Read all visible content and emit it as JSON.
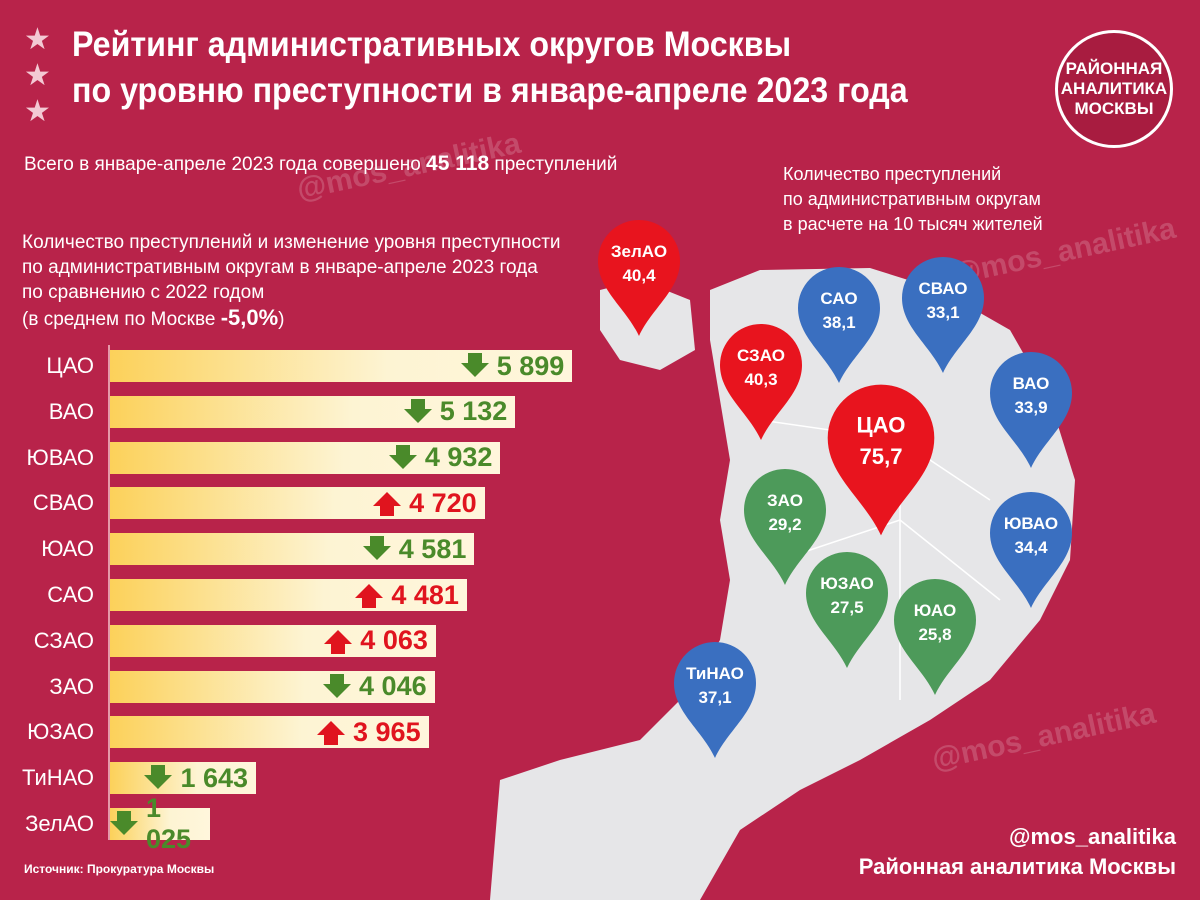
{
  "header": {
    "title_line1": "Рейтинг административных округов Москвы",
    "title_line2": "по уровню преступности в январе-апреле 2023 года"
  },
  "logo": {
    "text": "РАЙОННАЯ АНАЛИТИКА МОСКВЫ"
  },
  "total": {
    "prefix": "Всего в январе-апреле 2023 года совершено",
    "value": "45 118",
    "suffix": "преступлений"
  },
  "colors": {
    "background": "#b8234a",
    "down": "#4a8a2a",
    "up": "#e0141e",
    "pin_red": "#e8141e",
    "pin_blue": "#3a6fc0",
    "pin_green": "#4d9a5a",
    "map": "#e6e6e8"
  },
  "chart_data": [
    {
      "type": "bar",
      "title": "Количество преступлений и изменение уровня преступности по административным округам в январе-апреле 2023 года по сравнению с 2022 годом",
      "note_prefix": "(в среднем по Москве",
      "note_value": "-5,0%",
      "note_suffix": ")",
      "categories": [
        "ЦАО",
        "ВАО",
        "ЮВАО",
        "СВАО",
        "ЮАО",
        "САО",
        "СЗАО",
        "ЗАО",
        "ЮЗАО",
        "ТиНАО",
        "ЗелАО"
      ],
      "values": [
        5899,
        5132,
        4932,
        4720,
        4581,
        4481,
        4063,
        4046,
        3965,
        1643,
        1025
      ],
      "labels": [
        "5 899",
        "5 132",
        "4 932",
        "4 720",
        "4 581",
        "4 481",
        "4 063",
        "4 046",
        "3 965",
        "1 643",
        "1 025"
      ],
      "trend": [
        "down",
        "down",
        "down",
        "up",
        "down",
        "up",
        "up",
        "down",
        "up",
        "down",
        "down"
      ]
    },
    {
      "type": "map",
      "title_lines": [
        "Количество преступлений",
        "по административным округам",
        "в расчете на 10 тысяч жителей"
      ],
      "pins": [
        {
          "name": "ЗелАО",
          "value": "40,4",
          "color": "red"
        },
        {
          "name": "САО",
          "value": "38,1",
          "color": "blue"
        },
        {
          "name": "СВАО",
          "value": "33,1",
          "color": "blue"
        },
        {
          "name": "СЗАО",
          "value": "40,3",
          "color": "red"
        },
        {
          "name": "ВАО",
          "value": "33,9",
          "color": "blue"
        },
        {
          "name": "ЦАО",
          "value": "75,7",
          "color": "red"
        },
        {
          "name": "ЗАО",
          "value": "29,2",
          "color": "green"
        },
        {
          "name": "ЮВАО",
          "value": "34,4",
          "color": "blue"
        },
        {
          "name": "ЮЗАО",
          "value": "27,5",
          "color": "green"
        },
        {
          "name": "ЮАО",
          "value": "25,8",
          "color": "green"
        },
        {
          "name": "ТиНАО",
          "value": "37,1",
          "color": "blue"
        }
      ]
    }
  ],
  "source": "Источник: Прокуратура Москвы",
  "footer": {
    "handle": "@mos_analitika",
    "name": "Районная аналитика Москвы"
  },
  "watermark": "@mos_analitika"
}
